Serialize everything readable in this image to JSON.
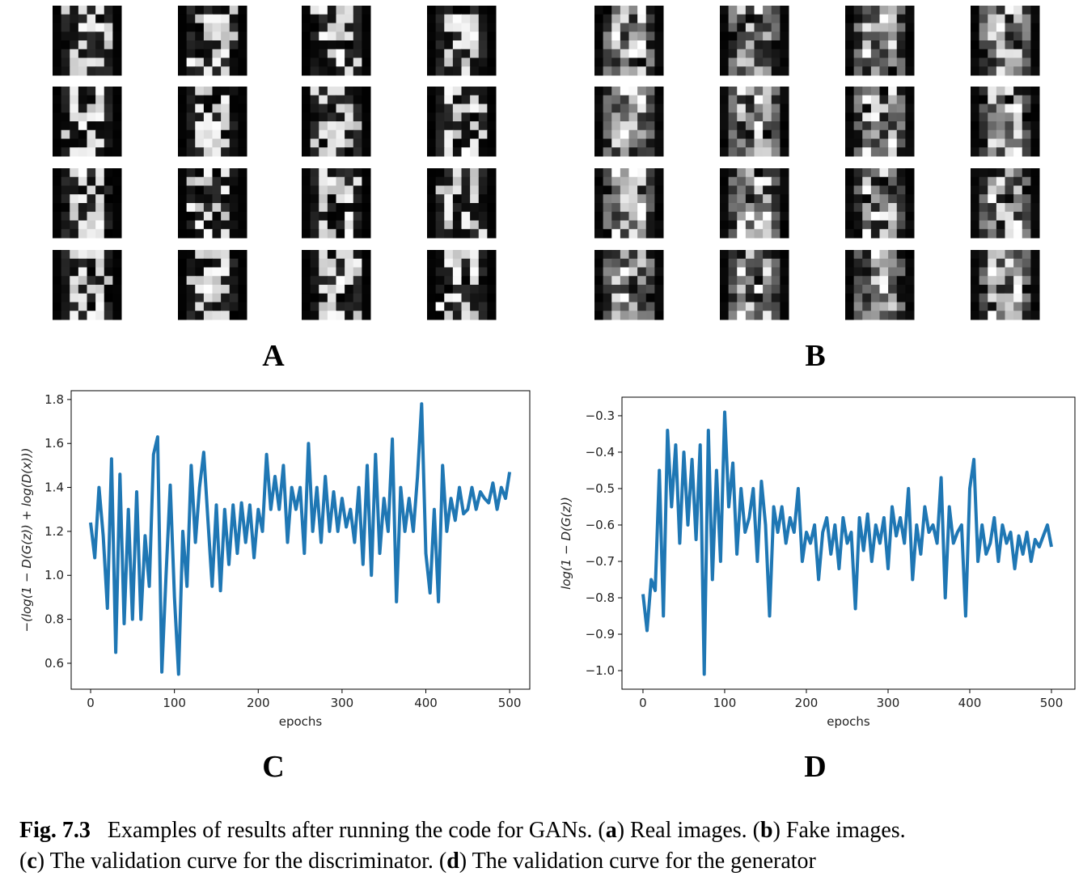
{
  "panel_labels": [
    "A",
    "B",
    "C",
    "D"
  ],
  "chart_data": [
    {
      "type": "line",
      "xlabel": "epochs",
      "ylabel": "−(log(1 − D(G(z)) + log(D(x)))",
      "color": "#1f77b4",
      "xlim": [
        -23.2,
        524
      ],
      "ylim": [
        0.482,
        1.84
      ],
      "xticks": [
        0,
        100,
        200,
        300,
        400,
        500
      ],
      "yticks": [
        0.6,
        0.8,
        {
          "value": 1,
          "label": "1.0"
        },
        1.2,
        1.4,
        1.6,
        1.8
      ],
      "x": [
        0,
        5,
        10,
        15,
        20,
        25,
        30,
        35,
        40,
        45,
        50,
        55,
        60,
        65,
        70,
        75,
        80,
        85,
        90,
        95,
        100,
        105,
        110,
        115,
        120,
        125,
        130,
        135,
        140,
        145,
        150,
        155,
        160,
        165,
        170,
        175,
        180,
        185,
        190,
        195,
        200,
        205,
        210,
        215,
        220,
        225,
        230,
        235,
        240,
        245,
        250,
        255,
        260,
        265,
        270,
        275,
        280,
        285,
        290,
        295,
        300,
        305,
        310,
        315,
        320,
        325,
        330,
        335,
        340,
        345,
        350,
        355,
        360,
        365,
        370,
        375,
        380,
        385,
        390,
        395,
        400,
        405,
        410,
        415,
        420,
        425,
        430,
        435,
        440,
        445,
        450,
        455,
        460,
        465,
        470,
        475,
        480,
        485,
        490,
        495,
        500
      ],
      "values": [
        1.24,
        1.08,
        1.4,
        1.18,
        0.85,
        1.53,
        0.65,
        1.46,
        0.78,
        1.3,
        0.8,
        1.38,
        0.8,
        1.18,
        0.95,
        1.55,
        1.63,
        0.56,
        1.0,
        1.41,
        0.9,
        0.55,
        1.2,
        0.95,
        1.5,
        1.15,
        1.4,
        1.56,
        1.25,
        0.95,
        1.32,
        0.93,
        1.3,
        1.05,
        1.32,
        1.1,
        1.33,
        1.15,
        1.32,
        1.08,
        1.3,
        1.2,
        1.55,
        1.3,
        1.45,
        1.3,
        1.5,
        1.15,
        1.4,
        1.3,
        1.4,
        1.1,
        1.6,
        1.2,
        1.4,
        1.15,
        1.45,
        1.2,
        1.38,
        1.2,
        1.35,
        1.22,
        1.3,
        1.15,
        1.4,
        1.05,
        1.5,
        1.0,
        1.55,
        1.1,
        1.35,
        1.2,
        1.62,
        0.88,
        1.4,
        1.2,
        1.35,
        1.2,
        1.45,
        1.78,
        1.1,
        0.92,
        1.3,
        0.88,
        1.5,
        1.2,
        1.35,
        1.25,
        1.4,
        1.28,
        1.3,
        1.4,
        1.3,
        1.38,
        1.35,
        1.33,
        1.42,
        1.3,
        1.4,
        1.35,
        1.47
      ]
    },
    {
      "type": "line",
      "xlabel": "epochs",
      "ylabel": "log(1 − D(G(z))",
      "color": "#1f77b4",
      "xlim": [
        -25.7,
        528.7
      ],
      "ylim": [
        -1.051,
        -0.249
      ],
      "xticks": [
        0,
        100,
        200,
        300,
        400,
        500
      ],
      "yticks": [
        {
          "value": -1,
          "label": "−1.0"
        },
        {
          "value": -0.9,
          "label": "−0.9"
        },
        {
          "value": -0.8,
          "label": "−0.8"
        },
        {
          "value": -0.7,
          "label": "−0.7"
        },
        {
          "value": -0.6,
          "label": "−0.6"
        },
        {
          "value": -0.5,
          "label": "−0.5"
        },
        {
          "value": -0.4,
          "label": "−0.4"
        },
        {
          "value": -0.3,
          "label": "−0.3"
        }
      ],
      "x": [
        0,
        5,
        10,
        15,
        20,
        25,
        30,
        35,
        40,
        45,
        50,
        55,
        60,
        65,
        70,
        75,
        80,
        85,
        90,
        95,
        100,
        105,
        110,
        115,
        120,
        125,
        130,
        135,
        140,
        145,
        150,
        155,
        160,
        165,
        170,
        175,
        180,
        185,
        190,
        195,
        200,
        205,
        210,
        215,
        220,
        225,
        230,
        235,
        240,
        245,
        250,
        255,
        260,
        265,
        270,
        275,
        280,
        285,
        290,
        295,
        300,
        305,
        310,
        315,
        320,
        325,
        330,
        335,
        340,
        345,
        350,
        355,
        360,
        365,
        370,
        375,
        380,
        385,
        390,
        395,
        400,
        405,
        410,
        415,
        420,
        425,
        430,
        435,
        440,
        445,
        450,
        455,
        460,
        465,
        470,
        475,
        480,
        485,
        490,
        495,
        500
      ],
      "values": [
        -0.79,
        -0.89,
        -0.75,
        -0.78,
        -0.45,
        -0.85,
        -0.34,
        -0.55,
        -0.38,
        -0.65,
        -0.4,
        -0.6,
        -0.42,
        -0.64,
        -0.38,
        -1.01,
        -0.34,
        -0.75,
        -0.45,
        -0.7,
        -0.29,
        -0.55,
        -0.43,
        -0.68,
        -0.5,
        -0.62,
        -0.58,
        -0.5,
        -0.7,
        -0.48,
        -0.6,
        -0.85,
        -0.55,
        -0.62,
        -0.55,
        -0.65,
        -0.58,
        -0.62,
        -0.5,
        -0.7,
        -0.62,
        -0.65,
        -0.6,
        -0.75,
        -0.62,
        -0.58,
        -0.68,
        -0.6,
        -0.72,
        -0.58,
        -0.65,
        -0.62,
        -0.83,
        -0.58,
        -0.67,
        -0.57,
        -0.7,
        -0.6,
        -0.65,
        -0.58,
        -0.72,
        -0.55,
        -0.63,
        -0.58,
        -0.65,
        -0.5,
        -0.75,
        -0.6,
        -0.68,
        -0.55,
        -0.62,
        -0.6,
        -0.65,
        -0.47,
        -0.8,
        -0.55,
        -0.65,
        -0.62,
        -0.6,
        -0.85,
        -0.5,
        -0.42,
        -0.7,
        -0.6,
        -0.68,
        -0.65,
        -0.58,
        -0.7,
        -0.6,
        -0.65,
        -0.62,
        -0.72,
        -0.63,
        -0.68,
        -0.62,
        -0.7,
        -0.64,
        -0.66,
        -0.63,
        -0.6,
        -0.66
      ]
    }
  ],
  "caption": {
    "lines": [
      [
        {
          "text": "Fig. 7.3",
          "bold": true
        },
        {
          "text": "   Examples of results after running the code for GANs. (",
          "bold": false
        },
        {
          "text": "a",
          "bold": true
        },
        {
          "text": ") Real images. (",
          "bold": false
        },
        {
          "text": "b",
          "bold": true
        },
        {
          "text": ") Fake images.",
          "bold": false
        }
      ],
      [
        {
          "text": "(",
          "bold": false
        },
        {
          "text": "c",
          "bold": true
        },
        {
          "text": ") The validation curve for the discriminator. (",
          "bold": false
        },
        {
          "text": "d",
          "bold": true
        },
        {
          "text": ") The validation curve for the generator",
          "bold": false
        }
      ]
    ]
  }
}
